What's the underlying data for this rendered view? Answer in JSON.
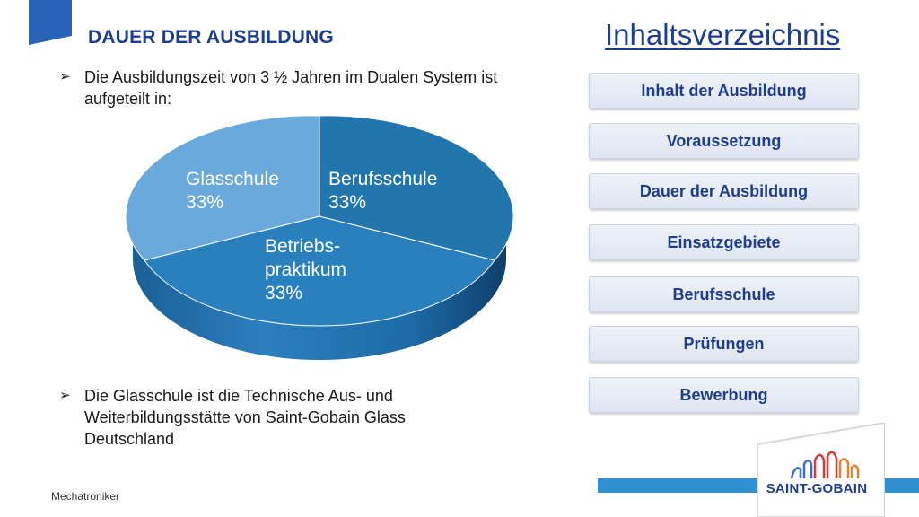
{
  "slide": {
    "title": "DAUER DER AUSBILDUNG",
    "bullets": [
      {
        "arrow": "➢",
        "text": "Die Ausbildungszeit von 3 ½ Jahren im Dualen System ist aufgeteilt in:"
      },
      {
        "arrow": "➢",
        "text": "Die Glasschule ist die Technische Aus- und Weiterbildungsstätte von Saint-Gobain Glass Deutschland"
      }
    ]
  },
  "chart_data": {
    "type": "pie",
    "slices": [
      {
        "label": "Glasschule",
        "percent_text": "33%",
        "value": 33.3
      },
      {
        "label": "Berufsschule",
        "percent_text": "33%",
        "value": 33.3
      },
      {
        "label": "Betriebs- praktikum",
        "label_lines": [
          "Betriebs-",
          "praktikum"
        ],
        "percent_text": "33%",
        "value": 33.3
      }
    ]
  },
  "toc": {
    "heading": "Inhaltsverzeichnis",
    "items": [
      "Inhalt der Ausbildung",
      "Voraussetzung",
      "Dauer der Ausbildung",
      "Einsatzgebiete",
      "Berufsschule",
      "Prüfungen",
      "Bewerbung"
    ]
  },
  "footer": {
    "text": "Mechatroniker",
    "logo_text": "SAINT-GOBAIN"
  },
  "colors": {
    "title": "#1d3d8f",
    "accent_bar": "#2f8fd1",
    "slice_glasschule": "#69a9dc",
    "slice_berufsschule": "#2275ad",
    "slice_praktikum": "#2a80bd"
  }
}
